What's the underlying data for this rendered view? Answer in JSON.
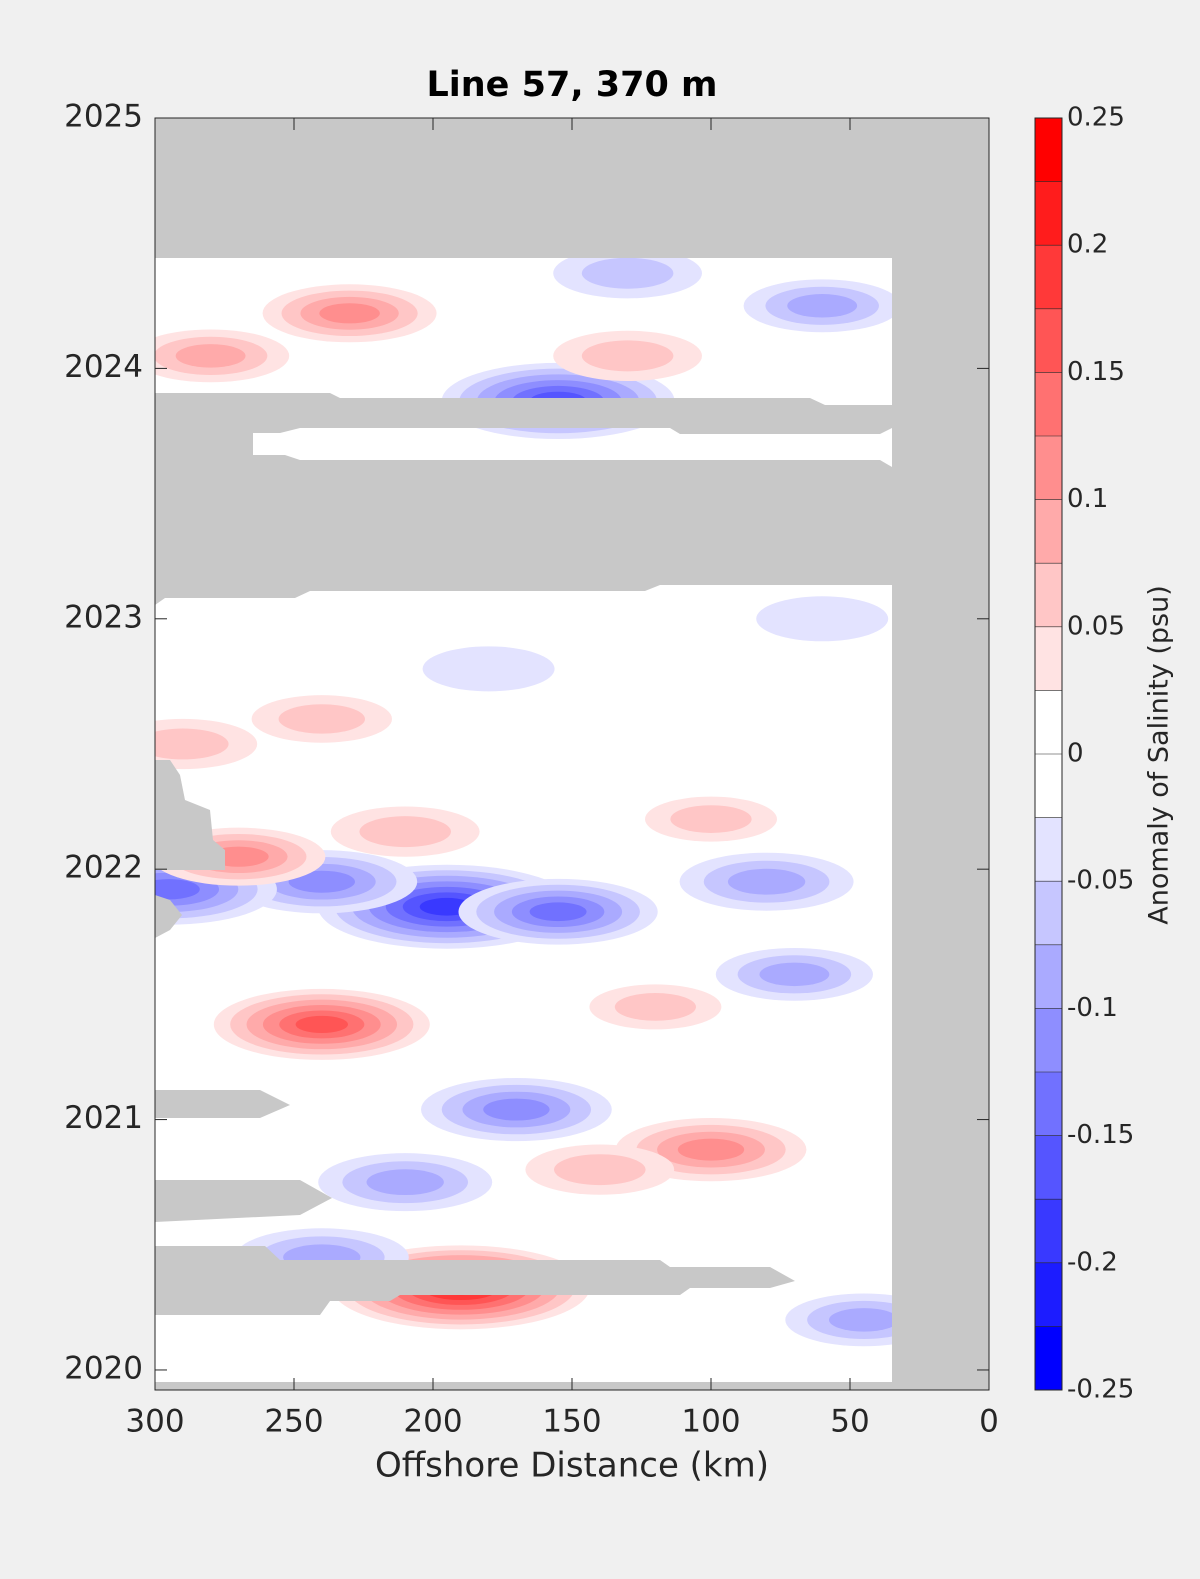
{
  "chart_data": {
    "type": "contour",
    "title": "Line 57, 370 m",
    "xlabel": "Offshore Distance (km)",
    "colorbar_label": "Anomaly of Salinity (psu)",
    "xlim": [
      300,
      0
    ],
    "xticks": [
      300,
      250,
      200,
      150,
      100,
      50,
      0
    ],
    "ylim": [
      2019.92,
      2025
    ],
    "yticks": [
      2020,
      2021,
      2022,
      2023,
      2024,
      2025
    ],
    "clim": [
      -0.25,
      0.25
    ],
    "cticks": [
      -0.25,
      -0.2,
      -0.15,
      -0.1,
      -0.05,
      0,
      0.05,
      0.1,
      0.15,
      0.2,
      0.25
    ],
    "levels": [
      -0.25,
      -0.225,
      -0.2,
      -0.175,
      -0.15,
      -0.125,
      -0.1,
      -0.075,
      -0.05,
      -0.025,
      0,
      0.025,
      0.05,
      0.075,
      0.1,
      0.125,
      0.15,
      0.175,
      0.2,
      0.225,
      0.25
    ],
    "colormap": [
      "#0000ff",
      "#ffffff",
      "#ff0000"
    ],
    "mask_color": "#c8c8c8",
    "features": [
      {
        "x": 240,
        "y": 2021.38,
        "value": 0.15
      },
      {
        "x": 195,
        "y": 2021.85,
        "value": -0.2
      },
      {
        "x": 155,
        "y": 2021.83,
        "value": -0.13
      },
      {
        "x": 240,
        "y": 2021.95,
        "value": -0.12
      },
      {
        "x": 295,
        "y": 2021.92,
        "value": -0.15
      },
      {
        "x": 190,
        "y": 2020.33,
        "value": 0.2
      },
      {
        "x": 100,
        "y": 2020.88,
        "value": 0.12
      },
      {
        "x": 155,
        "y": 2023.87,
        "value": -0.17
      },
      {
        "x": 230,
        "y": 2024.22,
        "value": 0.1
      },
      {
        "x": 280,
        "y": 2024.05,
        "value": 0.08
      },
      {
        "x": 170,
        "y": 2021.04,
        "value": -0.12
      },
      {
        "x": 130,
        "y": 2024.05,
        "value": 0.07
      },
      {
        "x": 80,
        "y": 2021.95,
        "value": -0.1
      },
      {
        "x": 240,
        "y": 2020.45,
        "value": -0.1
      },
      {
        "x": 210,
        "y": 2020.75,
        "value": -0.1
      },
      {
        "x": 140,
        "y": 2020.8,
        "value": 0.07
      },
      {
        "x": 100,
        "y": 2022.2,
        "value": 0.05
      },
      {
        "x": 240,
        "y": 2022.6,
        "value": 0.06
      },
      {
        "x": 290,
        "y": 2022.5,
        "value": 0.07
      },
      {
        "x": 180,
        "y": 2022.8,
        "value": -0.05
      },
      {
        "x": 60,
        "y": 2023.0,
        "value": -0.05
      },
      {
        "x": 45,
        "y": 2020.2,
        "value": -0.08
      },
      {
        "x": 70,
        "y": 2021.58,
        "value": -0.08
      },
      {
        "x": 210,
        "y": 2022.15,
        "value": 0.07
      },
      {
        "x": 270,
        "y": 2022.05,
        "value": 0.1
      },
      {
        "x": 60,
        "y": 2024.25,
        "value": -0.08
      },
      {
        "x": 120,
        "y": 2021.45,
        "value": 0.05
      },
      {
        "x": 130,
        "y": 2024.38,
        "value": -0.07
      }
    ]
  }
}
